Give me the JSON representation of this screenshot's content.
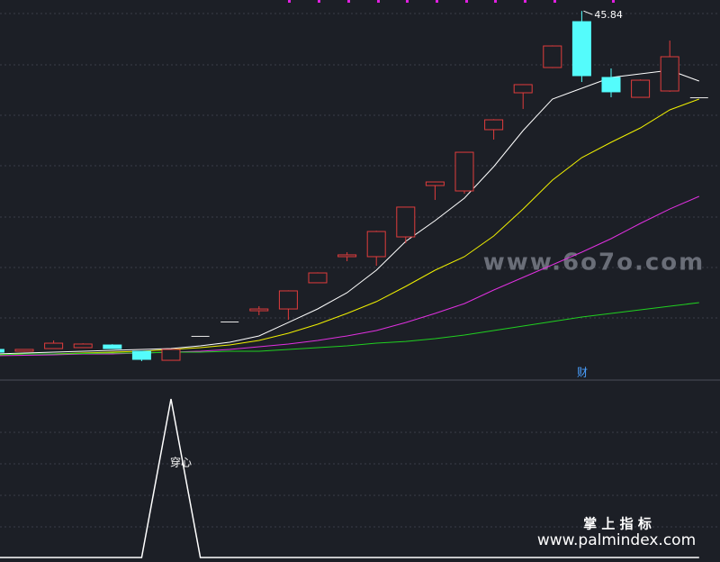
{
  "chart_data": [
    {
      "type": "candlestick",
      "up_color": "#e03c3c",
      "down_color": "#54fcfc",
      "flat_color": "#e8e8e8",
      "ylim": [
        7,
        47
      ],
      "open": [
        10.05,
        9.86,
        10.14,
        10.24,
        10.52,
        9.86,
        8.9,
        11.48,
        13.0,
        14.14,
        14.33,
        17.1,
        19.86,
        19.86,
        21.95,
        27.38,
        26.81,
        33.29,
        37.19,
        39.86,
        44.71,
        38.81,
        36.71,
        37.38,
        36.71
      ],
      "high": [
        10.1,
        10.1,
        11.0,
        10.7,
        10.6,
        9.9,
        10.1,
        11.48,
        13.0,
        14.62,
        16.3,
        18.2,
        20.33,
        22.6,
        25.1,
        27.8,
        30.9,
        34.4,
        38.1,
        42.2,
        45.84,
        39.76,
        38.6,
        42.71,
        36.71
      ],
      "low": [
        9.7,
        9.8,
        10.1,
        10.2,
        10.1,
        8.81,
        8.9,
        11.48,
        13.0,
        13.67,
        13.19,
        17.1,
        19.38,
        18.9,
        21.29,
        25.86,
        26.52,
        32.24,
        35.48,
        39.8,
        38.33,
        36.71,
        36.7,
        37.3,
        36.71
      ],
      "close": [
        9.76,
        10.05,
        10.71,
        10.62,
        10.14,
        9.0,
        10.05,
        11.48,
        13.0,
        14.33,
        16.24,
        18.14,
        20.05,
        22.52,
        25.1,
        27.76,
        30.9,
        34.33,
        38.05,
        42.14,
        39.0,
        37.29,
        38.52,
        41.0,
        36.71
      ],
      "max_label": "45.84",
      "series": [
        {
          "color": "#ffffff",
          "values": [
            9.57,
            9.67,
            9.76,
            9.86,
            9.95,
            10.05,
            10.14,
            10.43,
            10.81,
            11.48,
            12.9,
            14.33,
            16.05,
            18.43,
            21.48,
            23.67,
            26.05,
            29.38,
            33.19,
            36.52,
            37.67,
            38.81,
            39.19,
            39.57,
            38.43
          ]
        },
        {
          "color": "#f0f000",
          "values": [
            9.48,
            9.57,
            9.57,
            9.67,
            9.76,
            9.86,
            10.05,
            10.24,
            10.52,
            11.0,
            11.76,
            12.71,
            13.86,
            15.1,
            16.71,
            18.43,
            19.86,
            22.05,
            24.9,
            27.95,
            30.33,
            31.95,
            33.48,
            35.38,
            36.52
          ]
        },
        {
          "color": "#e030e0",
          "values": [
            9.38,
            9.43,
            9.48,
            9.57,
            9.57,
            9.67,
            9.76,
            9.86,
            10.05,
            10.33,
            10.62,
            11.0,
            11.48,
            12.05,
            12.9,
            13.86,
            14.9,
            16.33,
            17.67,
            19.0,
            20.33,
            21.76,
            23.38,
            24.9,
            26.24
          ]
        },
        {
          "color": "#20d020",
          "values": [
            9.48,
            9.57,
            9.57,
            9.62,
            9.67,
            9.67,
            9.76,
            9.76,
            9.86,
            9.86,
            10.05,
            10.24,
            10.43,
            10.71,
            10.9,
            11.19,
            11.57,
            12.05,
            12.52,
            13.0,
            13.48,
            13.86,
            14.24,
            14.62,
            15.0
          ]
        }
      ],
      "marker_text": "财"
    },
    {
      "type": "line",
      "color": "#ffffff",
      "ylim": [
        0,
        1
      ],
      "values": [
        0,
        0,
        0,
        0,
        0,
        0,
        1,
        0,
        0,
        0,
        0,
        0,
        0,
        0,
        0,
        0,
        0,
        0,
        0,
        0,
        0,
        0,
        0,
        0,
        0
      ],
      "annotation": "穿心"
    }
  ],
  "watermark": "www.6o7o.com",
  "footer": {
    "title": "掌 上 指 标",
    "url": "www.palmindex.com"
  }
}
